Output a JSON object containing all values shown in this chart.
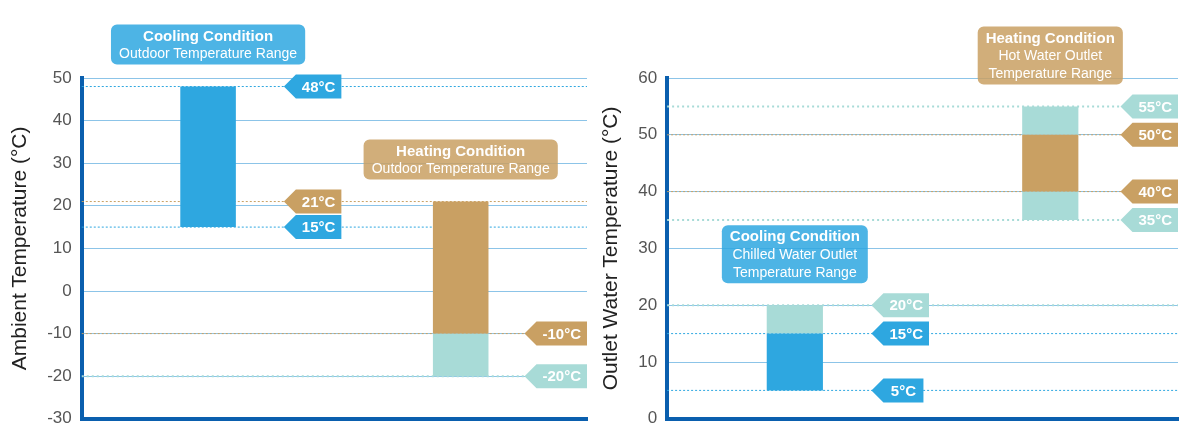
{
  "chart_data": [
    {
      "type": "bar",
      "ylabel": "Ambient Temperature (°C)",
      "categories": [
        null,
        null
      ],
      "series": [
        {
          "colors": [
            "#2ea7e0",
            "#c9a063"
          ],
          "base": [
            15,
            -10
          ],
          "values": [
            33,
            31
          ]
        },
        {
          "colors": [
            "#a8dbd7",
            "#a8dbd7"
          ],
          "base": [
            null,
            -20
          ],
          "values": [
            null,
            10
          ]
        }
      ],
      "ylim": [
        -30,
        50
      ],
      "yticks": [
        -30,
        -20,
        -10,
        0,
        10,
        20,
        30,
        40,
        50
      ],
      "grid": "y",
      "legend": false,
      "tick_labels": "y",
      "ref_lines": [
        {
          "axis": "y",
          "value": 48,
          "label": "48°C",
          "color": "#2ea7e0",
          "line_style": "dashed"
        },
        {
          "axis": "y",
          "value": 15,
          "label": "15°C",
          "color": "#2ea7e0",
          "line_style": "dashed"
        },
        {
          "axis": "y",
          "value": 21,
          "label": "21°C",
          "color": "#c9a063",
          "line_style": "dashed"
        },
        {
          "axis": "y",
          "value": -10,
          "label": "-10°C",
          "color": "#c9a063",
          "line_style": "dashed"
        },
        {
          "axis": "y",
          "value": -20,
          "label": "-20°C",
          "color": "#a8dbd7",
          "line_style": "dotted"
        }
      ],
      "annotations": [
        "Cooling Condition\nOutdoor Temperature Range",
        "Heating Condition\nOutdoor Temperature Range"
      ]
    },
    {
      "type": "bar",
      "ylabel": "Outlet Water Temperature (°C)",
      "categories": [
        null,
        null
      ],
      "series": [
        {
          "colors": [
            "#2ea7e0",
            "#c9a063"
          ],
          "base": [
            5,
            40
          ],
          "values": [
            10,
            10
          ]
        },
        {
          "colors": [
            "#a8dbd7",
            "#a8dbd7"
          ],
          "base": [
            15,
            50
          ],
          "values": [
            5,
            5
          ]
        },
        {
          "colors": [
            "#a8dbd7",
            "#a8dbd7"
          ],
          "base": [
            null,
            35
          ],
          "values": [
            null,
            5
          ]
        }
      ],
      "ylim": [
        0,
        60
      ],
      "yticks": [
        0,
        10,
        20,
        30,
        40,
        50,
        60
      ],
      "grid": "y",
      "legend": false,
      "tick_labels": "y",
      "ref_lines": [
        {
          "axis": "y",
          "value": 55,
          "label": "55°C",
          "color": "#a8dbd7",
          "line_style": "dotted"
        },
        {
          "axis": "y",
          "value": 50,
          "label": "50°C",
          "color": "#c9a063",
          "line_style": "dashed"
        },
        {
          "axis": "y",
          "value": 40,
          "label": "40°C",
          "color": "#c9a063",
          "line_style": "dashed"
        },
        {
          "axis": "y",
          "value": 35,
          "label": "35°C",
          "color": "#a8dbd7",
          "line_style": "dotted"
        },
        {
          "axis": "y",
          "value": 20,
          "label": "20°C",
          "color": "#a8dbd7",
          "line_style": "dotted"
        },
        {
          "axis": "y",
          "value": 15,
          "label": "15°C",
          "color": "#2ea7e0",
          "line_style": "dashed"
        },
        {
          "axis": "y",
          "value": 5,
          "label": "5°C",
          "color": "#2ea7e0",
          "line_style": "dashed"
        }
      ],
      "annotations": [
        "Cooling Condition\nChilled Water Outlet\nTemperature Range",
        "Heating Condition\nHot Water Outlet\nTemperature Range"
      ]
    }
  ]
}
